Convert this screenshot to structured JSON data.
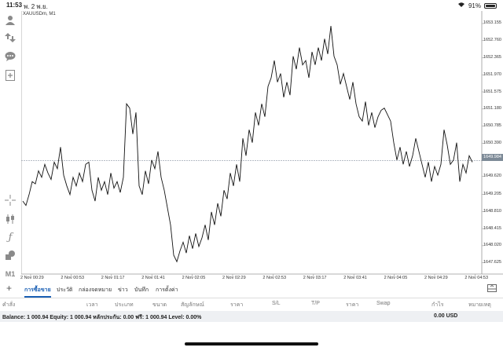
{
  "status": {
    "time": "11:53",
    "date": "พ. 2 พ.ย.",
    "battery": "91%"
  },
  "chart": {
    "symbol": "XAUUSDm, M1",
    "current_price": "1649.984"
  },
  "chart_data": {
    "type": "line",
    "y_ticks": [
      "1653.155",
      "1652.760",
      "1652.365",
      "1651.970",
      "1651.575",
      "1651.180",
      "1650.785",
      "1650.390",
      "1649.620",
      "1649.205",
      "1648.810",
      "1648.415",
      "1648.020",
      "1647.625"
    ],
    "x_ticks": [
      "2 Nov 00:29",
      "2 Nov 00:53",
      "2 Nov 01:17",
      "2 Nov 01:41",
      "2 Nov 02:05",
      "2 Nov 02:29",
      "2 Nov 02:53",
      "2 Nov 03:17",
      "2 Nov 03:41",
      "2 Nov 04:05",
      "2 Nov 04:29",
      "2 Nov 04:53"
    ],
    "ylim": [
      1647.4,
      1653.3
    ],
    "current_line": 1649.984,
    "x": [
      0,
      2,
      4,
      6,
      8,
      10,
      12,
      14,
      16,
      18,
      20,
      22,
      24,
      26,
      28,
      30,
      32,
      34,
      36,
      38,
      40,
      42,
      44,
      46,
      48,
      50,
      52,
      54,
      56,
      58,
      60,
      62,
      64,
      66,
      68,
      70,
      72,
      74,
      76,
      78,
      80,
      82,
      84,
      86,
      88,
      90,
      92,
      94,
      96,
      98,
      100,
      102,
      104,
      106,
      108,
      110,
      112,
      114,
      116,
      118,
      120,
      122,
      124,
      126,
      128,
      130,
      132,
      134,
      136,
      138,
      140,
      142,
      144,
      146,
      148,
      150,
      152,
      154,
      156,
      158,
      160,
      162,
      164,
      166,
      168,
      170,
      172,
      174,
      176,
      178,
      180,
      182,
      184,
      186,
      188,
      190,
      192,
      194,
      196,
      198,
      200,
      202,
      204,
      206,
      208,
      210,
      212,
      214,
      216,
      218,
      220,
      222,
      224,
      226,
      228,
      230,
      232,
      234,
      236,
      238,
      240,
      242,
      244,
      246,
      248,
      250,
      252,
      254,
      256,
      258,
      260,
      262,
      264,
      266,
      268,
      270,
      272,
      274,
      276,
      278,
      280,
      282,
      284,
      286
    ],
    "y": [
      1649.05,
      1648.95,
      1649.2,
      1649.5,
      1649.45,
      1649.75,
      1649.6,
      1649.9,
      1649.7,
      1649.55,
      1649.95,
      1649.8,
      1650.3,
      1649.65,
      1649.4,
      1649.2,
      1649.6,
      1649.4,
      1649.7,
      1649.5,
      1649.9,
      1649.95,
      1649.3,
      1649.05,
      1649.6,
      1649.3,
      1649.5,
      1649.2,
      1649.7,
      1649.35,
      1649.5,
      1649.25,
      1649.6,
      1651.3,
      1651.2,
      1650.6,
      1651.1,
      1649.4,
      1649.2,
      1649.75,
      1649.45,
      1650.0,
      1649.8,
      1650.2,
      1649.6,
      1649.3,
      1648.9,
      1648.5,
      1647.8,
      1647.65,
      1647.9,
      1648.1,
      1647.85,
      1648.25,
      1647.95,
      1648.3,
      1648.0,
      1648.2,
      1648.5,
      1648.15,
      1648.8,
      1648.5,
      1649.0,
      1648.7,
      1649.3,
      1649.1,
      1649.7,
      1649.4,
      1649.9,
      1649.5,
      1650.5,
      1650.1,
      1650.7,
      1650.4,
      1651.1,
      1650.8,
      1651.3,
      1651.0,
      1651.7,
      1651.9,
      1652.3,
      1651.8,
      1652.0,
      1651.45,
      1651.8,
      1651.5,
      1652.4,
      1652.1,
      1652.6,
      1652.2,
      1652.3,
      1651.9,
      1652.5,
      1652.2,
      1652.6,
      1652.3,
      1652.8,
      1652.45,
      1653.1,
      1652.4,
      1652.2,
      1651.75,
      1652.0,
      1651.7,
      1651.4,
      1651.8,
      1651.3,
      1651.0,
      1650.9,
      1651.35,
      1650.8,
      1651.1,
      1650.75,
      1651.0,
      1651.15,
      1651.2,
      1651.05,
      1650.9,
      1650.4,
      1650.0,
      1650.3,
      1649.9,
      1650.2,
      1649.85,
      1650.1,
      1650.5,
      1650.2,
      1649.9,
      1649.6,
      1649.95,
      1649.5,
      1649.85,
      1649.65,
      1649.9,
      1650.7,
      1650.35,
      1649.9,
      1650.0,
      1650.4,
      1649.5,
      1649.9,
      1649.7,
      1650.1,
      1649.95
    ]
  },
  "tabs": [
    "การซื้อขาย",
    "ประวัติ",
    "กล่องจดหมาย",
    "ข่าว",
    "บันทึก",
    "การตั้งค่า"
  ],
  "columns": [
    "คำสั่ง",
    "เวลา",
    "ประเภท",
    "ขนาด",
    "สัญลักษณ์",
    "ราคา",
    "S/L",
    "T/P",
    "ราคา",
    "Swap",
    "กำไร",
    "หมายเหตุ"
  ],
  "balance": {
    "text": "Balance: 1 000.94 Equity: 1 000.94 หลักประกัน: 0.00 ฟรี: 1 000.94 Level: 0.00%",
    "profit": "0.00  USD"
  },
  "tools": [
    "person-icon",
    "trade-arrows-icon",
    "chat-icon",
    "new-document-icon",
    "crosshair-icon",
    "candles-icon",
    "function-icon",
    "objects-icon",
    "timeframe-m1"
  ],
  "timeframe": "M1"
}
